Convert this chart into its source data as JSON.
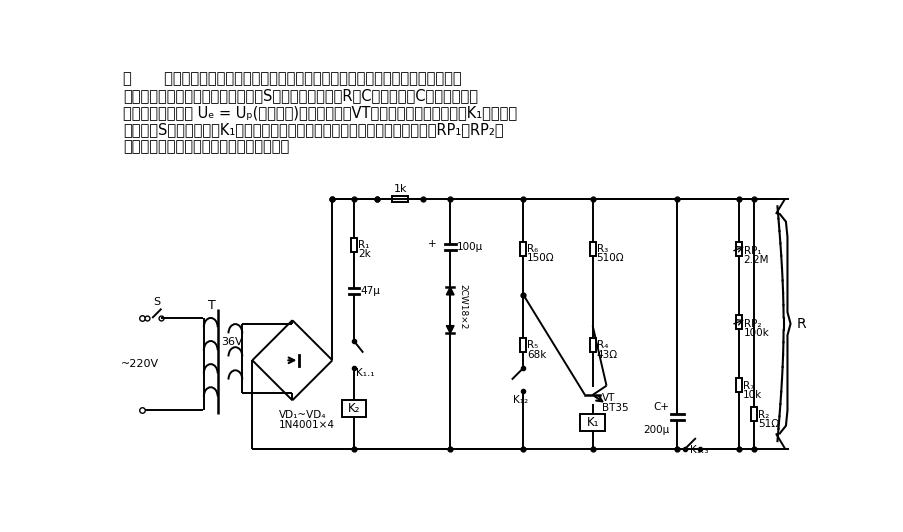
{
  "bg_color": "#ffffff",
  "lw": 1.4,
  "header": [
    [
      10,
      10,
      "图       是一个由单结晶体管组成的时间继电器，它主要由直流稳压电路和定时电路及"
    ],
    [
      10,
      32,
      "执行继电器三部分组成。当电源开关S闭合后，稳压电源R对C充电，电容C上的电压经过"
    ],
    [
      10,
      54,
      "一定的时间后会使 Uₑ = Uₚ(峰値电压)，单结晶体管VT此时突然导通，使继电器K₁吸合。从"
    ],
    [
      10,
      76,
      "电源开关S闭合到继电器K₁吸合的这段时间就是继电器的延迟时间，调节电位器RP₁和RP₂，"
    ],
    [
      10,
      98,
      "可使这一时间在几秒钟到十几分钟内变化。"
    ]
  ]
}
